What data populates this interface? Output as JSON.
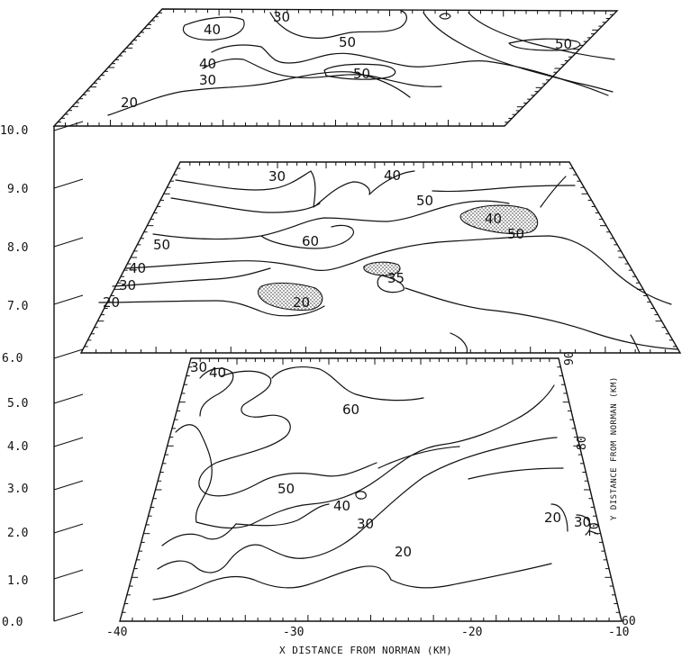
{
  "chart_data": {
    "type": "contour",
    "levels": [
      {
        "z": 10.0,
        "contour_labels": [
          "30",
          "40",
          "50",
          "50",
          "50",
          "40",
          "30",
          "20"
        ]
      },
      {
        "z": 8.0,
        "contour_labels": [
          "30",
          "40",
          "50",
          "40",
          "50",
          "60",
          "50",
          "40",
          "35",
          "30",
          "20",
          "20"
        ]
      },
      {
        "z": 6.0,
        "contour_labels": [
          "30",
          "40",
          "60",
          "50",
          "40",
          "30",
          "20",
          "20",
          "30"
        ]
      }
    ],
    "z_axis": {
      "ticks": [
        "0.0",
        "1.0",
        "2.0",
        "3.0",
        "4.0",
        "5.0",
        "6.0",
        "7.0",
        "8.0",
        "9.0",
        "10.0"
      ]
    },
    "x_axis": {
      "label": "X DISTANCE FROM NORMAN (KM)",
      "ticks": [
        "-40",
        "-30",
        "-20",
        "-10"
      ],
      "range": [
        -40,
        -10
      ]
    },
    "y_axis": {
      "label": "Y DISTANCE FROM NORMAN (KM)",
      "ticks": [
        "60",
        "70",
        "80",
        "90"
      ],
      "range": [
        60,
        90
      ]
    }
  }
}
